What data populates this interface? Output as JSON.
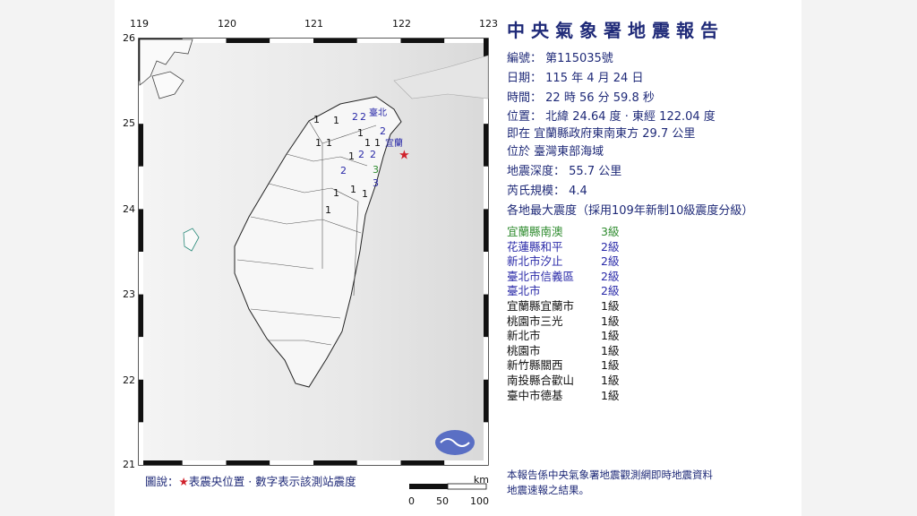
{
  "report": {
    "title": "中央氣象署地震報告",
    "number_label": "編號：",
    "number": "第115035號",
    "date_label": "日期：",
    "date": "115 年 4 月 24 日",
    "time_label": "時間：",
    "time": "22 時 56 分 59.8 秒",
    "location_label": "位置：",
    "location": "北緯 24.64 度 · 東經 122.04 度",
    "relative_location": "即在 宜蘭縣政府東南東方 29.7 公里",
    "region": "位於 臺灣東部海域",
    "depth_label": "地震深度：",
    "depth": "55.7 公里",
    "magnitude_label": "芮氏規模：",
    "magnitude": "4.4",
    "intensity_header": "各地最大震度（採用109年新制10級震度分級）",
    "intensities": [
      {
        "place": "宜蘭縣南澳",
        "level": "3級",
        "color": "#2e8b2e"
      },
      {
        "place": "花蓮縣和平",
        "level": "2級",
        "color": "#2a2aa8"
      },
      {
        "place": "新北市汐止",
        "level": "2級",
        "color": "#2a2aa8"
      },
      {
        "place": "臺北市信義區",
        "level": "2級",
        "color": "#2a2aa8"
      },
      {
        "place": "臺北市",
        "level": "2級",
        "color": "#2a2aa8"
      },
      {
        "place": "宜蘭縣宜蘭市",
        "level": "1級",
        "color": "#111111"
      },
      {
        "place": "桃園市三光",
        "level": "1級",
        "color": "#111111"
      },
      {
        "place": "新北市",
        "level": "1級",
        "color": "#111111"
      },
      {
        "place": "桃園市",
        "level": "1級",
        "color": "#111111"
      },
      {
        "place": "新竹縣關西",
        "level": "1級",
        "color": "#111111"
      },
      {
        "place": "南投縣合歡山",
        "level": "1級",
        "color": "#111111"
      },
      {
        "place": "臺中市德基",
        "level": "1級",
        "color": "#111111"
      }
    ],
    "footer_line1": "本報告係中央氣象署地震觀測網即時地震資料",
    "footer_line2": "地震速報之結果。"
  },
  "map": {
    "lon_ticks": [
      "119",
      "120",
      "121",
      "122",
      "123"
    ],
    "lat_ticks": [
      "26",
      "25",
      "24",
      "23",
      "22",
      "21"
    ],
    "city_labels": {
      "taipei": "臺北",
      "yilan": "宜蘭"
    },
    "epicenter": {
      "lon": 122.04,
      "lat": 24.64,
      "color": "#d0202a"
    },
    "legend_prefix": "圖說：",
    "legend_star": "★",
    "legend_text": "表震央位置 · 數字表示該測站震度",
    "scale_unit": "km",
    "scale_labels": [
      "0",
      "50",
      "100"
    ]
  }
}
